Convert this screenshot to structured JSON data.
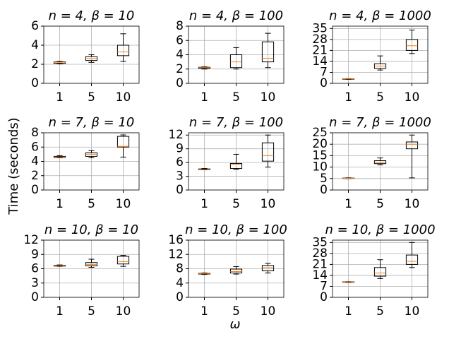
{
  "ylabel": "Time (seconds)",
  "xlabel": "ω",
  "chart_data": [
    {
      "type": "box",
      "title": "n = 4, β = 10",
      "categories": [
        "1",
        "5",
        "10"
      ],
      "ylim": [
        0,
        6
      ],
      "yticks": [
        0,
        2,
        4,
        6
      ],
      "grid": true,
      "box_color": "#000000",
      "median_color": "#ff7f0e",
      "values": [
        {
          "min": 2.05,
          "q1": 2.1,
          "median": 2.2,
          "q3": 2.25,
          "max": 2.3
        },
        {
          "min": 2.2,
          "q1": 2.4,
          "median": 2.6,
          "q3": 2.8,
          "max": 3.0
        },
        {
          "min": 2.3,
          "q1": 2.9,
          "median": 3.3,
          "q3": 4.0,
          "max": 5.2
        }
      ]
    },
    {
      "type": "box",
      "title": "n = 4, β = 100",
      "categories": [
        "1",
        "5",
        "10"
      ],
      "ylim": [
        0,
        8
      ],
      "yticks": [
        0,
        2,
        4,
        6,
        8
      ],
      "grid": true,
      "box_color": "#000000",
      "median_color": "#ff7f0e",
      "values": [
        {
          "min": 2.0,
          "q1": 2.1,
          "median": 2.2,
          "q3": 2.25,
          "max": 2.3
        },
        {
          "min": 2.0,
          "q1": 2.2,
          "median": 3.0,
          "q3": 4.0,
          "max": 5.0
        },
        {
          "min": 2.2,
          "q1": 3.0,
          "median": 3.5,
          "q3": 5.8,
          "max": 7.0
        }
      ]
    },
    {
      "type": "box",
      "title": "n = 4, β = 1000",
      "categories": [
        "1",
        "5",
        "10"
      ],
      "ylim": [
        0,
        36.5
      ],
      "yticks": [
        0,
        7,
        14,
        21,
        28,
        35
      ],
      "grid": true,
      "box_color": "#000000",
      "median_color": "#ff7f0e",
      "values": [
        {
          "min": 2.5,
          "q1": 2.6,
          "median": 2.8,
          "q3": 2.9,
          "max": 3.0
        },
        {
          "min": 8.5,
          "q1": 9.5,
          "median": 11,
          "q3": 12.5,
          "max": 17.5
        },
        {
          "min": 19,
          "q1": 21,
          "median": 24,
          "q3": 28,
          "max": 34
        }
      ]
    },
    {
      "type": "box",
      "title": "n = 7, β = 10",
      "categories": [
        "1",
        "5",
        "10"
      ],
      "ylim": [
        0,
        8
      ],
      "yticks": [
        0,
        2,
        4,
        6,
        8
      ],
      "grid": true,
      "box_color": "#000000",
      "median_color": "#ff7f0e",
      "values": [
        {
          "min": 4.5,
          "q1": 4.55,
          "median": 4.6,
          "q3": 4.7,
          "max": 4.8
        },
        {
          "min": 4.5,
          "q1": 4.7,
          "median": 5.0,
          "q3": 5.2,
          "max": 5.5
        },
        {
          "min": 4.6,
          "q1": 6.0,
          "median": 6.1,
          "q3": 7.5,
          "max": 7.7
        }
      ]
    },
    {
      "type": "box",
      "title": "n = 7, β = 100",
      "categories": [
        "1",
        "5",
        "10"
      ],
      "ylim": [
        0,
        12.5
      ],
      "yticks": [
        0,
        3,
        6,
        9,
        12
      ],
      "grid": true,
      "box_color": "#000000",
      "median_color": "#ff7f0e",
      "values": [
        {
          "min": 4.4,
          "q1": 4.45,
          "median": 4.5,
          "q3": 4.6,
          "max": 4.7
        },
        {
          "min": 4.5,
          "q1": 4.7,
          "median": 5.6,
          "q3": 5.8,
          "max": 7.8
        },
        {
          "min": 5.0,
          "q1": 6.3,
          "median": 7.5,
          "q3": 10.3,
          "max": 12.0
        }
      ]
    },
    {
      "type": "box",
      "title": "n = 7, β = 1000",
      "categories": [
        "1",
        "5",
        "10"
      ],
      "ylim": [
        0,
        25
      ],
      "yticks": [
        0,
        5,
        10,
        15,
        20,
        25
      ],
      "grid": true,
      "box_color": "#000000",
      "median_color": "#ff7f0e",
      "values": [
        {
          "min": 5.0,
          "q1": 5.05,
          "median": 5.1,
          "q3": 5.2,
          "max": 5.3
        },
        {
          "min": 11,
          "q1": 11.5,
          "median": 12,
          "q3": 12.8,
          "max": 14
        },
        {
          "min": 5.3,
          "q1": 18,
          "median": 20,
          "q3": 21,
          "max": 24
        }
      ]
    },
    {
      "type": "box",
      "title": "n = 10, β = 10",
      "categories": [
        "1",
        "5",
        "10"
      ],
      "ylim": [
        0,
        12
      ],
      "yticks": [
        0,
        3,
        6,
        9,
        12
      ],
      "grid": true,
      "box_color": "#000000",
      "median_color": "#ff7f0e",
      "values": [
        {
          "min": 6.5,
          "q1": 6.55,
          "median": 6.6,
          "q3": 6.7,
          "max": 6.8
        },
        {
          "min": 6.3,
          "q1": 6.6,
          "median": 6.9,
          "q3": 7.3,
          "max": 8.0
        },
        {
          "min": 6.5,
          "q1": 7.0,
          "median": 7.5,
          "q3": 8.6,
          "max": 8.8
        }
      ]
    },
    {
      "type": "box",
      "title": "n = 10, β = 100",
      "categories": [
        "1",
        "5",
        "10"
      ],
      "ylim": [
        0,
        16
      ],
      "yticks": [
        0,
        4,
        8,
        12,
        16
      ],
      "grid": true,
      "box_color": "#000000",
      "median_color": "#ff7f0e",
      "values": [
        {
          "min": 6.4,
          "q1": 6.5,
          "median": 6.6,
          "q3": 6.7,
          "max": 6.8
        },
        {
          "min": 6.5,
          "q1": 6.8,
          "median": 7.2,
          "q3": 7.9,
          "max": 8.6
        },
        {
          "min": 6.8,
          "q1": 7.4,
          "median": 8.3,
          "q3": 8.9,
          "max": 9.5
        }
      ]
    },
    {
      "type": "box",
      "title": "n = 10, β = 1000",
      "categories": [
        "1",
        "5",
        "10"
      ],
      "ylim": [
        0,
        36.5
      ],
      "yticks": [
        0,
        7,
        14,
        21,
        28,
        35
      ],
      "grid": true,
      "box_color": "#000000",
      "median_color": "#ff7f0e",
      "values": [
        {
          "min": 9.5,
          "q1": 9.6,
          "median": 9.8,
          "q3": 9.9,
          "max": 10.0
        },
        {
          "min": 12,
          "q1": 13.5,
          "median": 15.5,
          "q3": 19,
          "max": 24
        },
        {
          "min": 19,
          "q1": 21,
          "median": 23,
          "q3": 27,
          "max": 35
        }
      ]
    }
  ]
}
